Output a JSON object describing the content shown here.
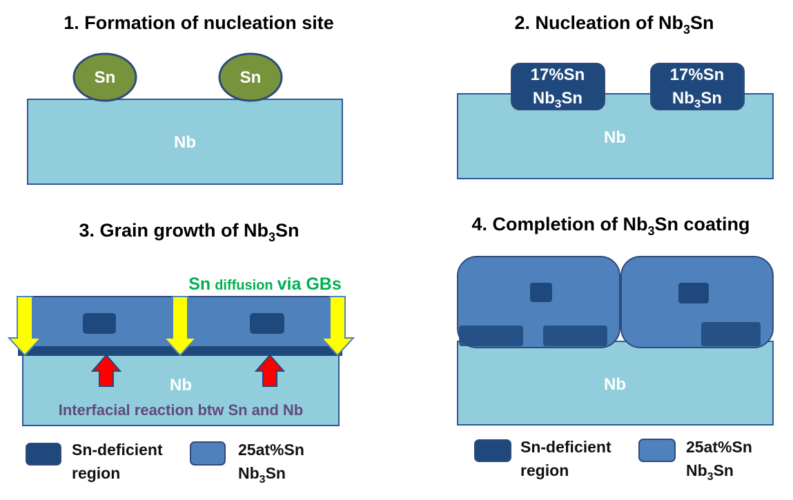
{
  "panel1": {
    "title": "1. Formation of nucleation site",
    "droplet_label": "Sn",
    "substrate_label": "Nb"
  },
  "panel2": {
    "title_main": "2. Nucleation of Nb",
    "title_sub": "3",
    "title_end": "Sn",
    "grain_line1": "17%Sn",
    "grain_line2_main": "Nb",
    "grain_line2_sub": "3",
    "grain_line2_end": "Sn",
    "substrate_label": "Nb"
  },
  "panel3": {
    "title_main": "3. Grain growth of Nb",
    "title_sub": "3",
    "title_end": "Sn",
    "diffusion_sn": "Sn",
    "diffusion_mid": "diffusion",
    "diffusion_end": "via GBs",
    "substrate_label": "Nb",
    "interface_label": "Interfacial reaction btw Sn and Nb"
  },
  "panel4": {
    "title_pre": "4. Completion of Nb",
    "title_sub": "3",
    "title_end": "Sn coating",
    "substrate_label": "Nb"
  },
  "legend": {
    "deficient_line1": "Sn-deficient",
    "deficient_line2": "region",
    "stoich_line1": "25at%Sn",
    "stoich_line2_main": "Nb",
    "stoich_line2_sub": "3",
    "stoich_line2_end": "Sn"
  },
  "colors": {
    "nb": "#92cddc",
    "nb_stroke": "#2f5597",
    "sn": "#77933c",
    "sn_stroke": "#2e4a7a",
    "dark_grain": "#1f497d",
    "light_grain": "#4f81bd",
    "arrow_yellow": "#ffff00",
    "arrow_red": "#ff0000",
    "diffusion_green": "#00b050",
    "interface_purple": "#604a7b"
  }
}
